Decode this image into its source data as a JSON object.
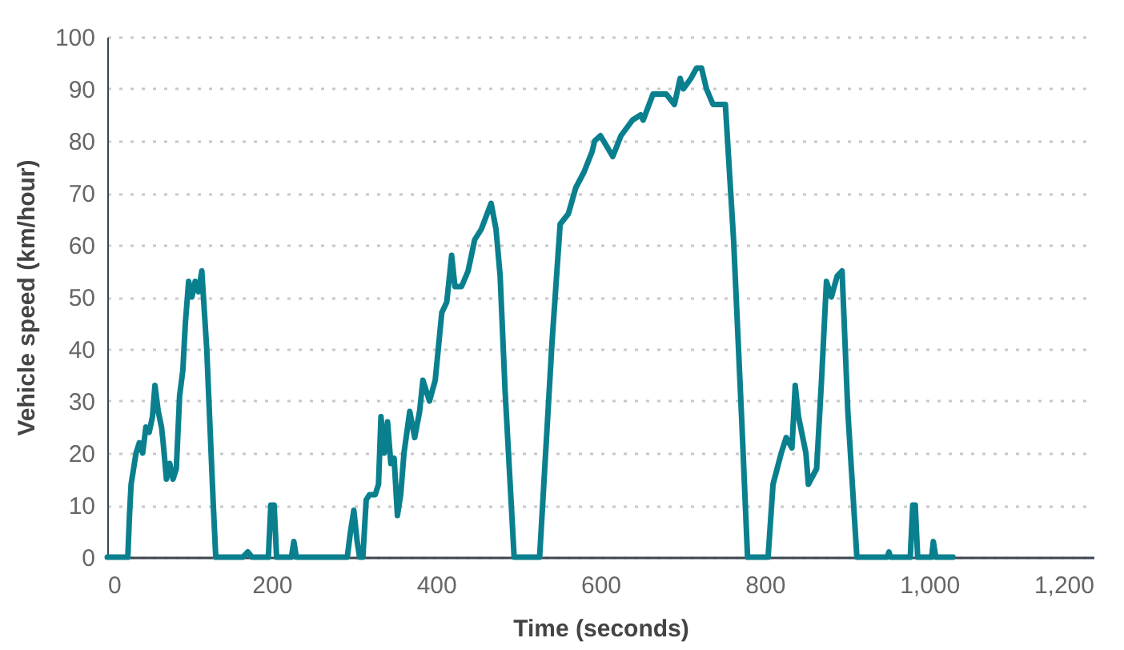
{
  "chart_data": {
    "type": "line",
    "xlabel": "Time (seconds)",
    "ylabel": "Vehicle speed (km/hour)",
    "xlim": [
      0,
      1200
    ],
    "xticks": [
      0,
      200,
      400,
      600,
      800,
      {
        "value": 1000,
        "label": "1,000"
      },
      {
        "value": 1200,
        "label": "1,200"
      }
    ],
    "ylim": [
      0,
      100
    ],
    "yticks": [
      0,
      10,
      20,
      30,
      40,
      50,
      60,
      70,
      80,
      90,
      100
    ],
    "grid": "y",
    "marker": "none",
    "line_style": "solid",
    "series": [
      {
        "color": "#0a808f",
        "x": [
          0,
          25,
          27,
          29,
          31,
          35,
          39,
          43,
          47,
          51,
          55,
          58,
          62,
          66,
          68,
          72,
          76,
          80,
          84,
          88,
          92,
          95,
          99,
          103,
          107,
          111,
          115,
          121,
          129,
          132,
          165,
          171,
          176,
          196,
          199,
          203,
          206,
          224,
          227,
          230,
          292,
          296,
          300,
          304,
          307,
          311,
          315,
          319,
          326,
          330,
          333,
          337,
          341,
          345,
          349,
          353,
          357,
          361,
          368,
          374,
          380,
          384,
          392,
          399,
          407,
          413,
          419,
          423,
          431,
          439,
          447,
          455,
          467,
          473,
          478,
          484,
          495,
          526,
          541,
          551,
          561,
          570,
          580,
          590,
          593,
          600,
          615,
          625,
          639,
          649,
          652,
          664,
          680,
          690,
          697,
          701,
          710,
          717,
          723,
          729,
          737,
          752,
          762,
          772,
          779,
          804,
          810,
          815,
          820,
          826,
          833,
          837,
          841,
          850,
          853,
          863,
          869,
          875,
          881,
          888,
          894,
          901,
          912,
          949,
          951,
          953,
          977,
          980,
          983,
          986,
          1003,
          1005,
          1008,
          1029
        ],
        "values": [
          0,
          0,
          8,
          14,
          16,
          20,
          22,
          20,
          25,
          24,
          27,
          33,
          28,
          25,
          22,
          15,
          18,
          15,
          17,
          31,
          36,
          45,
          53,
          50,
          53,
          51,
          55,
          40,
          10,
          0,
          0,
          1,
          0,
          0,
          10,
          10,
          0,
          0,
          3,
          0,
          0,
          5,
          9,
          3,
          0,
          0,
          11,
          12,
          12,
          14,
          27,
          20,
          26,
          18,
          19,
          8,
          12,
          20,
          28,
          23,
          28,
          34,
          30,
          34,
          47,
          49,
          58,
          52,
          52,
          55,
          61,
          63,
          68,
          63,
          54,
          32,
          0,
          0,
          41,
          64,
          66,
          71,
          74,
          78,
          80,
          81,
          77,
          81,
          84,
          85,
          84,
          89,
          89,
          87,
          92,
          90,
          92,
          94,
          94,
          90,
          87,
          87,
          61,
          26,
          0,
          0,
          14,
          17,
          20,
          23,
          21,
          33,
          27,
          20,
          14,
          17,
          34,
          53,
          50,
          54,
          55,
          28,
          0,
          0,
          1,
          0,
          0,
          10,
          10,
          0,
          0,
          3,
          0,
          0
        ]
      }
    ]
  }
}
